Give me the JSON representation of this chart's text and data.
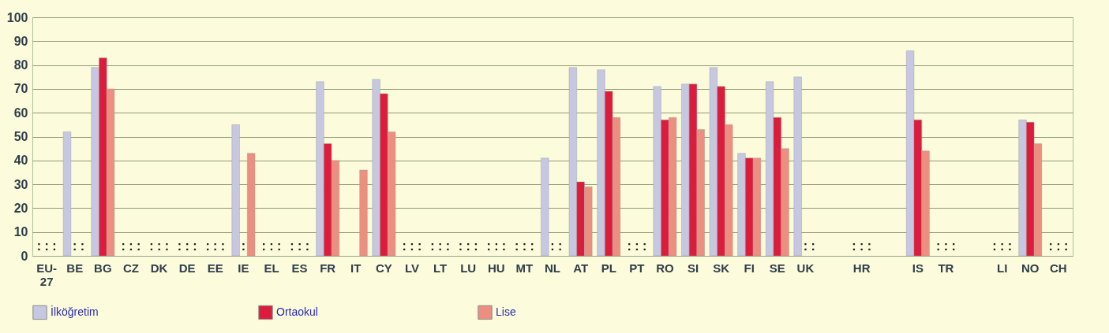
{
  "chart_data": {
    "type": "bar",
    "categories": [
      "EU-27",
      "BE",
      "BG",
      "CZ",
      "DK",
      "DE",
      "EE",
      "IE",
      "EL",
      "ES",
      "FR",
      "IT",
      "CY",
      "LV",
      "LT",
      "LU",
      "HU",
      "MT",
      "NL",
      "AT",
      "PL",
      "PT",
      "RO",
      "SI",
      "SK",
      "FI",
      "SE",
      "UK",
      null,
      "HR",
      null,
      "IS",
      "TR",
      null,
      "LI",
      "NO",
      "CH"
    ],
    "series": [
      {
        "name": "İlköğretim",
        "color": "#c5c8e0",
        "values": [
          null,
          52,
          79,
          null,
          null,
          null,
          null,
          55,
          null,
          null,
          73,
          null,
          74,
          null,
          null,
          null,
          null,
          null,
          41,
          79,
          78,
          null,
          71,
          72,
          79,
          43,
          73,
          75,
          null,
          null,
          null,
          86,
          null,
          null,
          null,
          57,
          null
        ],
        "value_labels": [
          ":",
          null,
          null,
          ":",
          ":",
          ":",
          ":",
          null,
          ":",
          ":",
          null,
          null,
          null,
          ":",
          ":",
          ":",
          ":",
          ":",
          null,
          null,
          null,
          ":",
          null,
          null,
          null,
          null,
          null,
          null,
          null,
          ":",
          null,
          null,
          ":",
          null,
          ":",
          null,
          ":"
        ]
      },
      {
        "name": "Ortaokul",
        "color": "#dc1c3c",
        "values": [
          null,
          null,
          83,
          null,
          null,
          null,
          null,
          null,
          null,
          null,
          47,
          null,
          68,
          null,
          null,
          null,
          null,
          null,
          null,
          31,
          69,
          null,
          57,
          72,
          71,
          41,
          58,
          null,
          null,
          null,
          null,
          57,
          null,
          null,
          null,
          56,
          null
        ],
        "value_labels": [
          ":",
          ":",
          null,
          ":",
          ":",
          ":",
          ":",
          ":",
          ":",
          ":",
          null,
          null,
          null,
          ":",
          ":",
          ":",
          ":",
          ":",
          ":",
          null,
          null,
          ":",
          null,
          null,
          null,
          null,
          null,
          ":",
          null,
          ":",
          null,
          null,
          ":",
          null,
          ":",
          null,
          ":"
        ]
      },
      {
        "name": "Lise",
        "color": "#ec8f80",
        "values": [
          null,
          null,
          70,
          null,
          null,
          null,
          null,
          43,
          null,
          null,
          40,
          36,
          52,
          null,
          null,
          null,
          null,
          null,
          null,
          29,
          58,
          null,
          58,
          53,
          55,
          41,
          45,
          null,
          null,
          null,
          null,
          44,
          null,
          null,
          null,
          47,
          null
        ],
        "value_labels": [
          ":",
          ":",
          null,
          ":",
          ":",
          ":",
          ":",
          null,
          ":",
          ":",
          null,
          null,
          null,
          ":",
          ":",
          ":",
          ":",
          ":",
          ":",
          null,
          null,
          ":",
          null,
          null,
          null,
          null,
          null,
          ":",
          null,
          ":",
          null,
          null,
          ":",
          null,
          ":",
          null,
          ":"
        ]
      }
    ],
    "ylim": [
      0,
      100
    ],
    "yticks": [
      0,
      10,
      20,
      30,
      40,
      50,
      60,
      70,
      80,
      90,
      100
    ],
    "grid": "y",
    "legend": "bottom"
  }
}
